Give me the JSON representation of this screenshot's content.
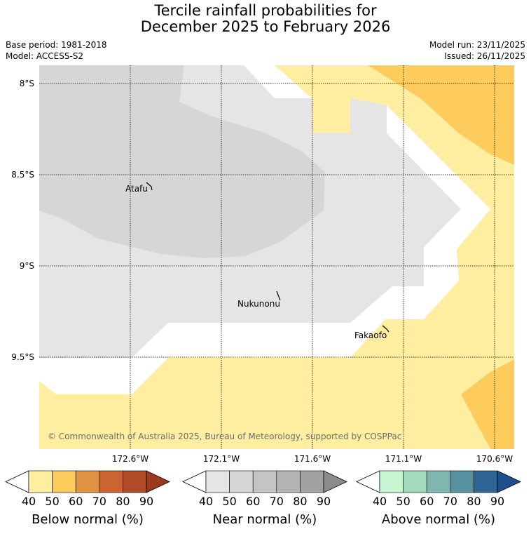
{
  "title_line1": "Tercile rainfall probabilities for",
  "title_line2": "December 2025 to February 2026",
  "base_period": "Base period: 1981-2018",
  "model": "Model: ACCESS-S2",
  "model_run": "Model run: 23/11/2025",
  "issued": "Issued: 26/11/2025",
  "copyright": "© Commonwealth of Australia 2025, Bureau of Meteorology, supported by COSPPac",
  "lat_labels": [
    "8°S",
    "8.5°S",
    "9°S",
    "9.5°S"
  ],
  "lon_labels": [
    "172.6°W",
    "172.1°W",
    "171.6°W",
    "171.1°W",
    "170.6°W"
  ],
  "places": [
    {
      "name": "Atafu"
    },
    {
      "name": "Nukunonu"
    },
    {
      "name": "Fakaofo"
    }
  ],
  "colorbars": [
    {
      "label": "Below normal (%)",
      "ticks": [
        "40",
        "50",
        "60",
        "70",
        "80",
        "90"
      ],
      "colors": [
        "#ffeda0",
        "#fecc5c",
        "#e09243",
        "#cc6330",
        "#b04a27",
        "#9c3a1f"
      ]
    },
    {
      "label": "Near normal (%)",
      "ticks": [
        "40",
        "50",
        "60",
        "70",
        "80",
        "90"
      ],
      "colors": [
        "#e5e5e5",
        "#d6d6d6",
        "#c4c4c4",
        "#b3b3b3",
        "#a2a2a2",
        "#8c8c8c"
      ]
    },
    {
      "label": "Above normal (%)",
      "ticks": [
        "40",
        "50",
        "60",
        "70",
        "80",
        "90"
      ],
      "colors": [
        "#c7f6d2",
        "#a3d9bf",
        "#7fb7b0",
        "#5892a0",
        "#2e6496",
        "#1c4f8c"
      ]
    }
  ],
  "colors": {
    "below_40_50": "#ffeda0",
    "below_50_60": "#fecc5c",
    "near_40_50": "#e5e5e5",
    "near_50_60": "#d6d6d6"
  }
}
